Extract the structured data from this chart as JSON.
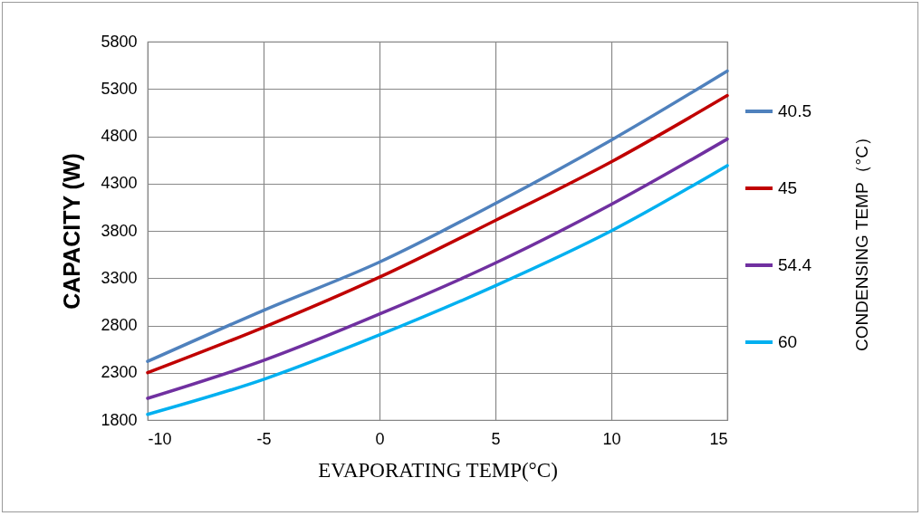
{
  "chart_data": {
    "type": "line",
    "xlabel": "EVAPORATING TEMP(°C)",
    "ylabel": "CAPACITY (W)",
    "legend_title": "CONDENSING TEMP（°C）",
    "x": [
      -10,
      -5,
      0,
      5,
      10,
      15
    ],
    "series": [
      {
        "name": "40.5",
        "color": "#4f81bd",
        "values": [
          2420,
          2960,
          3470,
          4090,
          4760,
          5490
        ]
      },
      {
        "name": "45",
        "color": "#c00000",
        "values": [
          2300,
          2780,
          3310,
          3910,
          4530,
          5230
        ]
      },
      {
        "name": "54.4",
        "color": "#7030a0",
        "values": [
          2030,
          2430,
          2920,
          3460,
          4080,
          4770
        ]
      },
      {
        "name": "60",
        "color": "#00b0f0",
        "values": [
          1860,
          2230,
          2700,
          3220,
          3800,
          4490
        ]
      }
    ],
    "xlim": [
      -10,
      15
    ],
    "xticks": [
      -10,
      -5,
      0,
      5,
      10,
      15
    ],
    "ylim": [
      1800,
      5800
    ],
    "yticks": [
      1800,
      2300,
      2800,
      3300,
      3800,
      4300,
      4800,
      5300,
      5800
    ],
    "grid": true,
    "legend": "right",
    "marker": "none",
    "line_style": "solid"
  }
}
